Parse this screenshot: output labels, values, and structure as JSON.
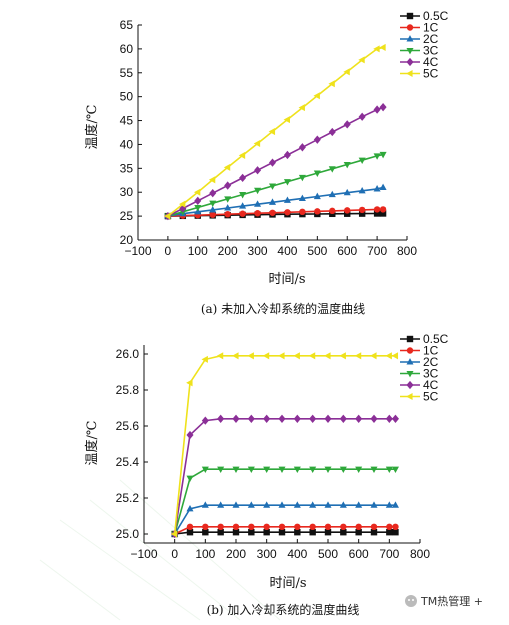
{
  "chart_data": [
    {
      "type": "line",
      "caption": "(a) 未加入冷却系统的温度曲线",
      "xlabel": "时间/s",
      "ylabel": "温度/℃",
      "xlim": [
        -100,
        800
      ],
      "ylim": [
        20,
        65
      ],
      "xticks": [
        -100,
        0,
        100,
        200,
        300,
        400,
        500,
        600,
        700,
        800
      ],
      "yticks": [
        20,
        25,
        30,
        35,
        40,
        45,
        50,
        55,
        60,
        65
      ],
      "x": [
        0,
        50,
        100,
        150,
        200,
        250,
        300,
        350,
        400,
        450,
        500,
        550,
        600,
        650,
        700,
        720
      ],
      "legend_position": "top-right",
      "series": [
        {
          "name": "0.5C",
          "color": "#111111",
          "marker": "square",
          "values": [
            25.0,
            25.05,
            25.1,
            25.15,
            25.2,
            25.25,
            25.3,
            25.35,
            25.4,
            25.42,
            25.45,
            25.48,
            25.5,
            25.52,
            25.55,
            25.55
          ]
        },
        {
          "name": "1C",
          "color": "#e8281e",
          "marker": "circle",
          "values": [
            25.0,
            25.1,
            25.2,
            25.3,
            25.4,
            25.5,
            25.6,
            25.7,
            25.8,
            25.9,
            26.0,
            26.1,
            26.2,
            26.3,
            26.4,
            26.4
          ]
        },
        {
          "name": "2C",
          "color": "#1f6fb4",
          "marker": "triangle-up",
          "values": [
            25.0,
            25.5,
            25.9,
            26.3,
            26.7,
            27.1,
            27.5,
            27.9,
            28.3,
            28.7,
            29.1,
            29.5,
            29.9,
            30.3,
            30.7,
            31.0
          ]
        },
        {
          "name": "3C",
          "color": "#2ea83a",
          "marker": "triangle-down",
          "values": [
            25.0,
            25.9,
            26.8,
            27.7,
            28.6,
            29.5,
            30.4,
            31.3,
            32.2,
            33.1,
            34.0,
            34.9,
            35.8,
            36.7,
            37.6,
            37.9
          ]
        },
        {
          "name": "4C",
          "color": "#8b2f97",
          "marker": "diamond",
          "values": [
            25.0,
            26.6,
            28.2,
            29.8,
            31.4,
            33.0,
            34.6,
            36.2,
            37.8,
            39.4,
            41.0,
            42.6,
            44.2,
            45.8,
            47.3,
            47.8
          ]
        },
        {
          "name": "5C",
          "color": "#efe21c",
          "marker": "triangle-left",
          "values": [
            25.0,
            27.5,
            30.0,
            32.6,
            35.2,
            37.7,
            40.2,
            42.7,
            45.2,
            47.7,
            50.2,
            52.7,
            55.2,
            57.7,
            60.0,
            60.3
          ]
        }
      ]
    },
    {
      "type": "line",
      "caption": "(b) 加入冷却系统的温度曲线",
      "xlabel": "时间/s",
      "ylabel": "温度/℃",
      "xlim": [
        -100,
        800
      ],
      "ylim": [
        24.95,
        26.05
      ],
      "xticks": [
        -100,
        0,
        100,
        200,
        300,
        400,
        500,
        600,
        700,
        800
      ],
      "yticks": [
        "25.0",
        "25.2",
        "25.4",
        "25.6",
        "25.8",
        "26.0"
      ],
      "x": [
        0,
        50,
        100,
        150,
        200,
        250,
        300,
        350,
        400,
        450,
        500,
        550,
        600,
        650,
        700,
        720
      ],
      "legend_position": "top-right",
      "series": [
        {
          "name": "0.5C",
          "color": "#111111",
          "marker": "square",
          "values": [
            25.0,
            25.01,
            25.01,
            25.01,
            25.01,
            25.01,
            25.01,
            25.01,
            25.01,
            25.01,
            25.01,
            25.01,
            25.01,
            25.01,
            25.01,
            25.01
          ]
        },
        {
          "name": "1C",
          "color": "#e8281e",
          "marker": "circle",
          "values": [
            25.0,
            25.04,
            25.04,
            25.04,
            25.04,
            25.04,
            25.04,
            25.04,
            25.04,
            25.04,
            25.04,
            25.04,
            25.04,
            25.04,
            25.04,
            25.04
          ]
        },
        {
          "name": "2C",
          "color": "#1f6fb4",
          "marker": "triangle-up",
          "values": [
            25.0,
            25.14,
            25.16,
            25.16,
            25.16,
            25.16,
            25.16,
            25.16,
            25.16,
            25.16,
            25.16,
            25.16,
            25.16,
            25.16,
            25.16,
            25.16
          ]
        },
        {
          "name": "3C",
          "color": "#2ea83a",
          "marker": "triangle-down",
          "values": [
            25.0,
            25.31,
            25.36,
            25.36,
            25.36,
            25.36,
            25.36,
            25.36,
            25.36,
            25.36,
            25.36,
            25.36,
            25.36,
            25.36,
            25.36,
            25.36
          ]
        },
        {
          "name": "4C",
          "color": "#8b2f97",
          "marker": "diamond",
          "values": [
            25.0,
            25.55,
            25.63,
            25.64,
            25.64,
            25.64,
            25.64,
            25.64,
            25.64,
            25.64,
            25.64,
            25.64,
            25.64,
            25.64,
            25.64,
            25.64
          ]
        },
        {
          "name": "5C",
          "color": "#efe21c",
          "marker": "triangle-left",
          "values": [
            25.0,
            25.84,
            25.97,
            25.99,
            25.99,
            25.99,
            25.99,
            25.99,
            25.99,
            25.99,
            25.99,
            25.99,
            25.99,
            25.99,
            25.99,
            25.99
          ]
        }
      ]
    }
  ],
  "watermark": {
    "icon": "wechat-icon",
    "text": "TM热管理 +"
  }
}
